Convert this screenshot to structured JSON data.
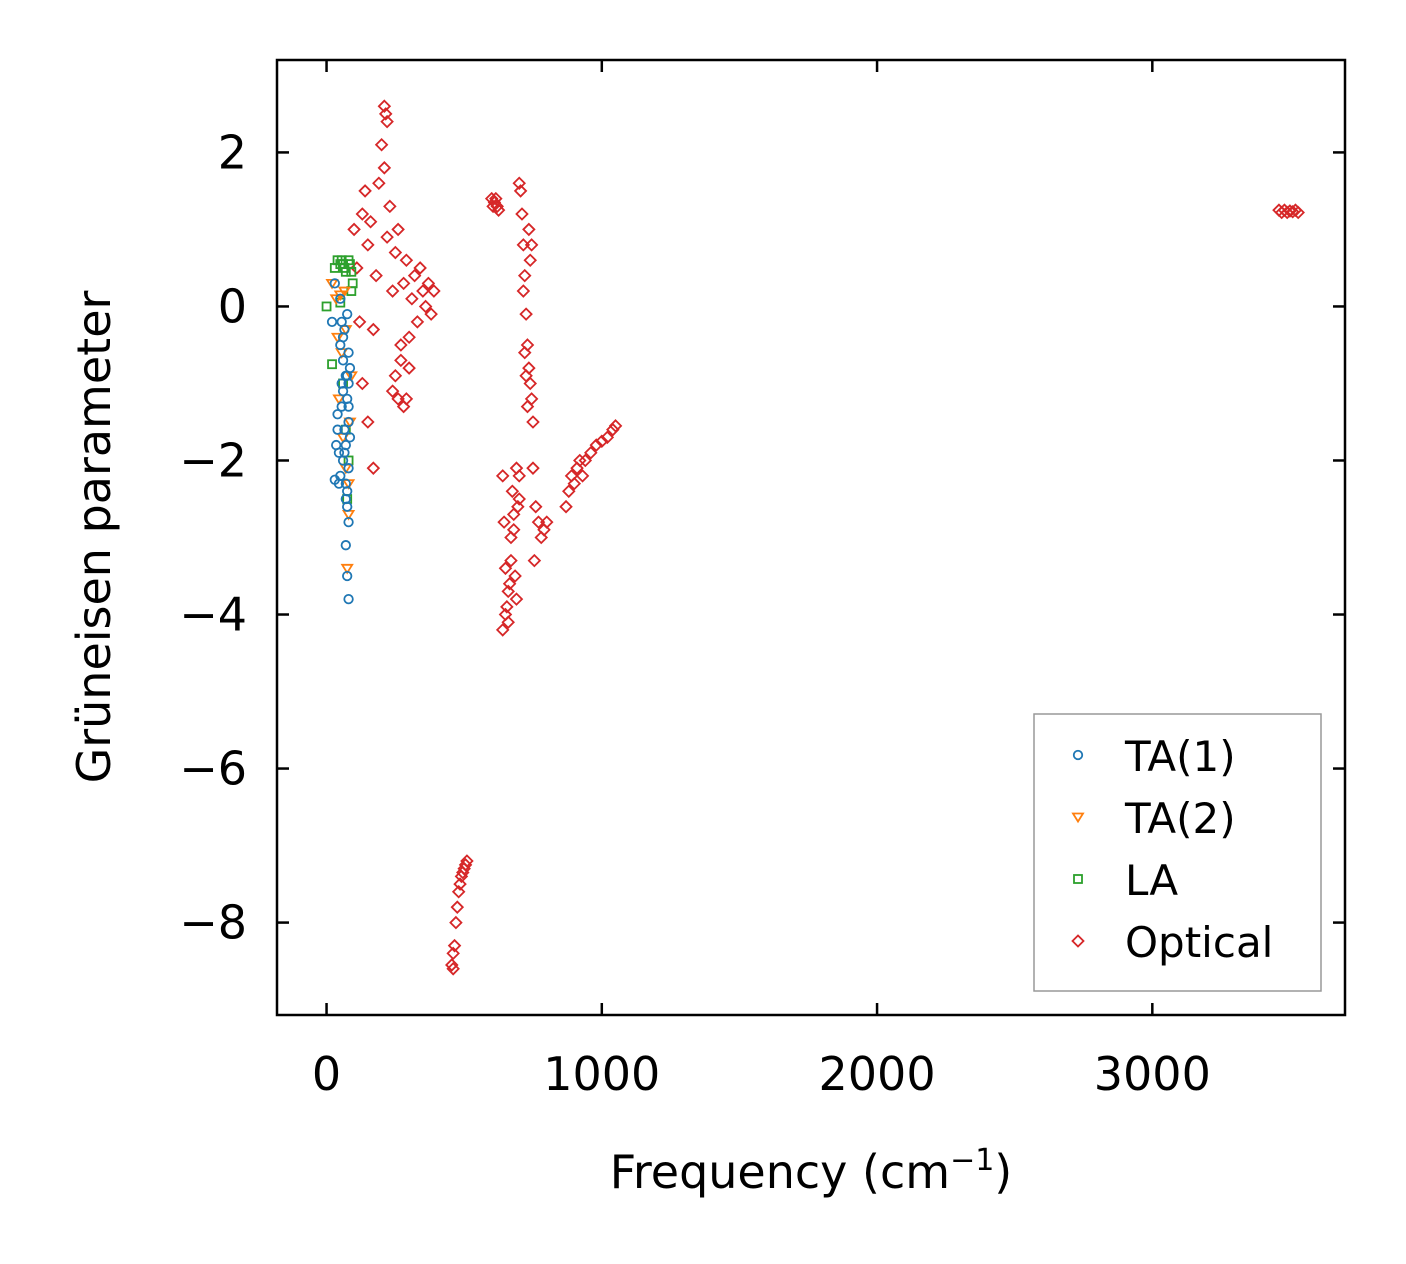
{
  "chart_data": {
    "type": "scatter",
    "title": "",
    "xlabel": "Frequency (cm",
    "xlabel_sup": "−1",
    "xlabel_suffix": ")",
    "ylabel": "Grüneisen parameter",
    "xlim": [
      -180,
      3700
    ],
    "ylim": [
      -9.2,
      3.2
    ],
    "xticks": [
      0,
      1000,
      2000,
      3000
    ],
    "xtick_labels": [
      "0",
      "1000",
      "2000",
      "3000"
    ],
    "yticks": [
      2,
      0,
      -2,
      -4,
      -6,
      -8
    ],
    "ytick_labels": [
      "2",
      "0",
      "−2",
      "−4",
      "−6",
      "−8"
    ],
    "grid": false,
    "legend_position": "bottom-right",
    "series": [
      {
        "name": "TA(1)",
        "marker": "circle",
        "color": "#1f77b4",
        "x": [
          20,
          30,
          40,
          45,
          50,
          50,
          55,
          55,
          60,
          60,
          65,
          65,
          70,
          70,
          70,
          75,
          75,
          75,
          80,
          80,
          80,
          35,
          45,
          55,
          60,
          70,
          75,
          80,
          85,
          80,
          30,
          40,
          50,
          60,
          65,
          70,
          75,
          80,
          85,
          75,
          80
        ],
        "y": [
          -0.2,
          0.3,
          -1.6,
          -1.9,
          -2.2,
          -0.5,
          -1.0,
          -1.3,
          -0.7,
          -2.0,
          -0.3,
          -1.6,
          -2.3,
          -0.9,
          -1.8,
          -2.6,
          -1.2,
          -0.1,
          -0.6,
          -1.5,
          -2.1,
          -1.8,
          -2.3,
          -0.2,
          -1.1,
          -3.1,
          -3.5,
          -3.8,
          -0.8,
          -2.8,
          -2.25,
          -1.4,
          0.1,
          -0.4,
          -1.9,
          -2.5,
          -0.9,
          -1.3,
          -1.7,
          -2.4,
          -1.0
        ]
      },
      {
        "name": "TA(2)",
        "marker": "triangle-down",
        "color": "#ff7f0e",
        "x": [
          20,
          35,
          45,
          55,
          65,
          70,
          75,
          80,
          85,
          90,
          60,
          70,
          80,
          40,
          50
        ],
        "y": [
          0.3,
          0.1,
          -1.2,
          -0.6,
          0.2,
          -2.1,
          -3.4,
          -2.7,
          -1.5,
          -0.9,
          -1.7,
          -0.3,
          -2.3,
          -0.4,
          0.15
        ]
      },
      {
        "name": "LA",
        "marker": "square",
        "color": "#2ca02c",
        "x": [
          0,
          20,
          30,
          40,
          50,
          55,
          60,
          65,
          70,
          75,
          80,
          85,
          90,
          95,
          50,
          60,
          70,
          80,
          90
        ],
        "y": [
          0.0,
          -0.75,
          0.5,
          0.6,
          0.55,
          0.6,
          0.55,
          0.5,
          0.45,
          -2.5,
          0.6,
          0.55,
          0.45,
          0.3,
          0.05,
          -1.0,
          -1.6,
          -2.0,
          0.2
        ]
      },
      {
        "name": "Optical",
        "marker": "diamond",
        "color": "#d62728",
        "x": [
          100,
          110,
          120,
          130,
          140,
          150,
          160,
          170,
          180,
          190,
          200,
          210,
          220,
          230,
          240,
          250,
          260,
          270,
          280,
          290,
          300,
          310,
          320,
          330,
          340,
          350,
          360,
          370,
          380,
          390,
          210,
          215,
          220,
          130,
          150,
          170,
          240,
          250,
          260,
          270,
          280,
          290,
          300,
          600,
          605,
          610,
          615,
          620,
          625,
          700,
          705,
          710,
          715,
          720,
          725,
          730,
          735,
          740,
          745,
          750,
          715,
          720,
          725,
          730,
          735,
          740,
          745,
          640,
          645,
          650,
          655,
          660,
          665,
          670,
          675,
          680,
          685,
          690,
          695,
          700,
          640,
          650,
          660,
          670,
          680,
          690,
          700,
          750,
          760,
          770,
          780,
          790,
          800,
          755,
          870,
          880,
          890,
          900,
          910,
          920,
          930,
          940,
          960,
          980,
          1000,
          1020,
          1040,
          1050,
          460,
          465,
          470,
          475,
          480,
          485,
          490,
          495,
          500,
          505,
          510,
          455,
          460,
          3460,
          3470,
          3480,
          3490,
          3500,
          3510,
          3520,
          3530
        ],
        "y": [
          1.0,
          0.5,
          -0.2,
          1.2,
          1.5,
          0.8,
          1.1,
          -0.3,
          0.4,
          1.6,
          2.1,
          1.8,
          0.9,
          1.3,
          0.2,
          0.7,
          1.0,
          -0.5,
          0.3,
          0.6,
          -0.8,
          0.1,
          0.4,
          -0.2,
          0.5,
          0.2,
          0.0,
          0.3,
          -0.1,
          0.2,
          2.6,
          2.5,
          2.4,
          -1.0,
          -1.5,
          -2.1,
          -1.1,
          -0.9,
          -1.2,
          -0.7,
          -1.3,
          -1.2,
          -0.4,
          1.4,
          1.3,
          1.35,
          1.4,
          1.3,
          1.25,
          1.6,
          1.5,
          1.2,
          0.8,
          0.4,
          -0.1,
          -0.5,
          -0.8,
          -1.0,
          -1.2,
          -1.5,
          0.2,
          -0.6,
          -0.9,
          -1.3,
          1.0,
          0.6,
          0.8,
          -2.2,
          -2.8,
          -3.4,
          -3.9,
          -4.1,
          -3.6,
          -3.0,
          -2.4,
          -2.9,
          -3.5,
          -3.8,
          -2.6,
          -2.2,
          -4.2,
          -4.0,
          -3.7,
          -3.3,
          -2.7,
          -2.1,
          -2.5,
          -2.1,
          -2.6,
          -2.8,
          -3.0,
          -2.9,
          -2.8,
          -3.3,
          -2.6,
          -2.4,
          -2.2,
          -2.3,
          -2.1,
          -2.0,
          -2.2,
          -2.0,
          -1.9,
          -1.8,
          -1.75,
          -1.7,
          -1.6,
          -1.55,
          -8.6,
          -8.3,
          -8.0,
          -7.8,
          -7.6,
          -7.5,
          -7.4,
          -7.35,
          -7.3,
          -7.25,
          -7.2,
          -8.55,
          -8.4,
          1.25,
          1.22,
          1.25,
          1.22,
          1.24,
          1.23,
          1.25,
          1.22
        ]
      }
    ]
  }
}
